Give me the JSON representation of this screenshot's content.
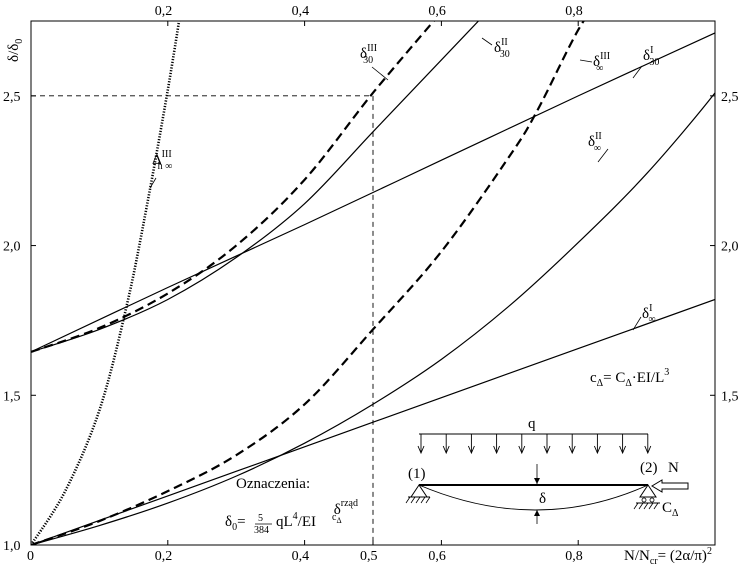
{
  "chart_data": {
    "type": "line",
    "xlabel": "N/N",
    "xlabel_sub": "cr",
    "xlabel_rhs": "= (2α/π)",
    "xlabel_sup": "2",
    "ylabel": "δ/δ",
    "ylabel_sub": "0",
    "xlim": [
      0,
      1.0
    ],
    "ylim": [
      1.0,
      2.75
    ],
    "x_ticks_bottom": [
      {
        "v": 0,
        "t": "0"
      },
      {
        "v": 0.2,
        "t": "0,2"
      },
      {
        "v": 0.4,
        "t": "0,4"
      },
      {
        "v": 0.5,
        "t": "0,5"
      },
      {
        "v": 0.6,
        "t": "0,6"
      },
      {
        "v": 0.8,
        "t": "0,8"
      }
    ],
    "x_ticks_top": [
      {
        "v": 0.2,
        "t": "0,2"
      },
      {
        "v": 0.4,
        "t": "0,4"
      },
      {
        "v": 0.6,
        "t": "0,6"
      },
      {
        "v": 0.8,
        "t": "0,8"
      }
    ],
    "y_ticks": [
      {
        "v": 1.0,
        "t": "1,0"
      },
      {
        "v": 1.5,
        "t": "1,5"
      },
      {
        "v": 2.0,
        "t": "2,0"
      },
      {
        "v": 2.5,
        "t": "2,5"
      }
    ],
    "y_ticks_right": [
      {
        "v": 1.5,
        "t": "1,5"
      },
      {
        "v": 2.0,
        "t": "2,0"
      },
      {
        "v": 2.5,
        "t": "2,5"
      }
    ],
    "guides": {
      "x": 0.5,
      "y": 2.5
    },
    "series": [
      {
        "id": "delta_inf_I",
        "style": "solid",
        "points": [
          [
            0,
            1.0
          ],
          [
            0.2,
            1.164
          ],
          [
            0.4,
            1.328
          ],
          [
            0.6,
            1.492
          ],
          [
            0.8,
            1.656
          ],
          [
            1.0,
            1.82
          ]
        ]
      },
      {
        "id": "delta_inf_II",
        "style": "solid",
        "points": [
          [
            0,
            1.0
          ],
          [
            0.1,
            1.065
          ],
          [
            0.2,
            1.14
          ],
          [
            0.3,
            1.23
          ],
          [
            0.4,
            1.34
          ],
          [
            0.5,
            1.47
          ],
          [
            0.6,
            1.62
          ],
          [
            0.7,
            1.8
          ],
          [
            0.8,
            2.01
          ],
          [
            0.9,
            2.24
          ],
          [
            1.0,
            2.51
          ],
          [
            1.04,
            2.65
          ]
        ]
      },
      {
        "id": "delta_inf_III",
        "style": "dashed",
        "points": [
          [
            0,
            1.0
          ],
          [
            0.1,
            1.08
          ],
          [
            0.2,
            1.18
          ],
          [
            0.3,
            1.3
          ],
          [
            0.4,
            1.47
          ],
          [
            0.5,
            1.72
          ],
          [
            0.6,
            1.98
          ],
          [
            0.7,
            2.3
          ],
          [
            0.74,
            2.45
          ],
          [
            0.8,
            2.72
          ],
          [
            0.84,
            2.85
          ]
        ]
      },
      {
        "id": "delta_30_I",
        "style": "solid",
        "points": [
          [
            0,
            1.645
          ],
          [
            0.2,
            1.86
          ],
          [
            0.4,
            2.07
          ],
          [
            0.6,
            2.285
          ],
          [
            0.8,
            2.5
          ],
          [
            1.0,
            2.71
          ]
        ]
      },
      {
        "id": "delta_30_II",
        "style": "solid",
        "points": [
          [
            0,
            1.645
          ],
          [
            0.1,
            1.72
          ],
          [
            0.2,
            1.82
          ],
          [
            0.3,
            1.96
          ],
          [
            0.4,
            2.14
          ],
          [
            0.5,
            2.38
          ],
          [
            0.6,
            2.62
          ],
          [
            0.7,
            2.86
          ]
        ]
      },
      {
        "id": "delta_30_III",
        "style": "dashed",
        "points": [
          [
            0,
            1.645
          ],
          [
            0.1,
            1.725
          ],
          [
            0.2,
            1.84
          ],
          [
            0.3,
            2.0
          ],
          [
            0.4,
            2.22
          ],
          [
            0.5,
            2.51
          ],
          [
            0.6,
            2.78
          ]
        ]
      },
      {
        "id": "Delta_h_inf_III",
        "style": "dotted",
        "points": [
          [
            0,
            1.0
          ],
          [
            0.05,
            1.18
          ],
          [
            0.1,
            1.45
          ],
          [
            0.14,
            1.8
          ],
          [
            0.17,
            2.14
          ],
          [
            0.2,
            2.52
          ],
          [
            0.22,
            2.8
          ]
        ]
      }
    ],
    "annotations": {
      "delta_inf_I": {
        "base": "δ",
        "sup": "I",
        "sub": "∞"
      },
      "delta_inf_II": {
        "base": "δ",
        "sup": "II",
        "sub": "∞"
      },
      "delta_inf_III": {
        "base": "δ",
        "sup": "III",
        "sub": "∞"
      },
      "delta_30_I": {
        "base": "δ",
        "sup": "I",
        "sub": "30"
      },
      "delta_30_II": {
        "base": "δ",
        "sup": "II",
        "sub": "30"
      },
      "delta_30_III": {
        "base": "δ",
        "sup": "III",
        "sub": "30"
      },
      "Delta_h_inf_III": {
        "base": "Δ",
        "sup": "III",
        "sub": "h ∞"
      }
    },
    "formula_c": {
      "lhs": "c",
      "lhs_sub": "Δ",
      "mid": "= C",
      "mid_sub": "Δ",
      "rhs": "·EI/L",
      "rhs_sup": "3"
    },
    "legend_box": {
      "heading": "Oznaczenia:",
      "entry_base": "δ",
      "entry_sup": "rząd",
      "entry_sub": "c",
      "entry_sub2": "Δ",
      "formula_lhs": "δ",
      "formula_lhs_sub": "0",
      "formula_eq": "=",
      "frac_num": "5",
      "frac_den": "384",
      "formula_rhs": "qL",
      "formula_rhs_sup": "4",
      "formula_tail": "/EI"
    },
    "beam": {
      "load": "q",
      "left": "(1)",
      "right": "(2)",
      "force": "N",
      "deflection": "δ",
      "spring": "C",
      "spring_sub": "Δ"
    }
  }
}
